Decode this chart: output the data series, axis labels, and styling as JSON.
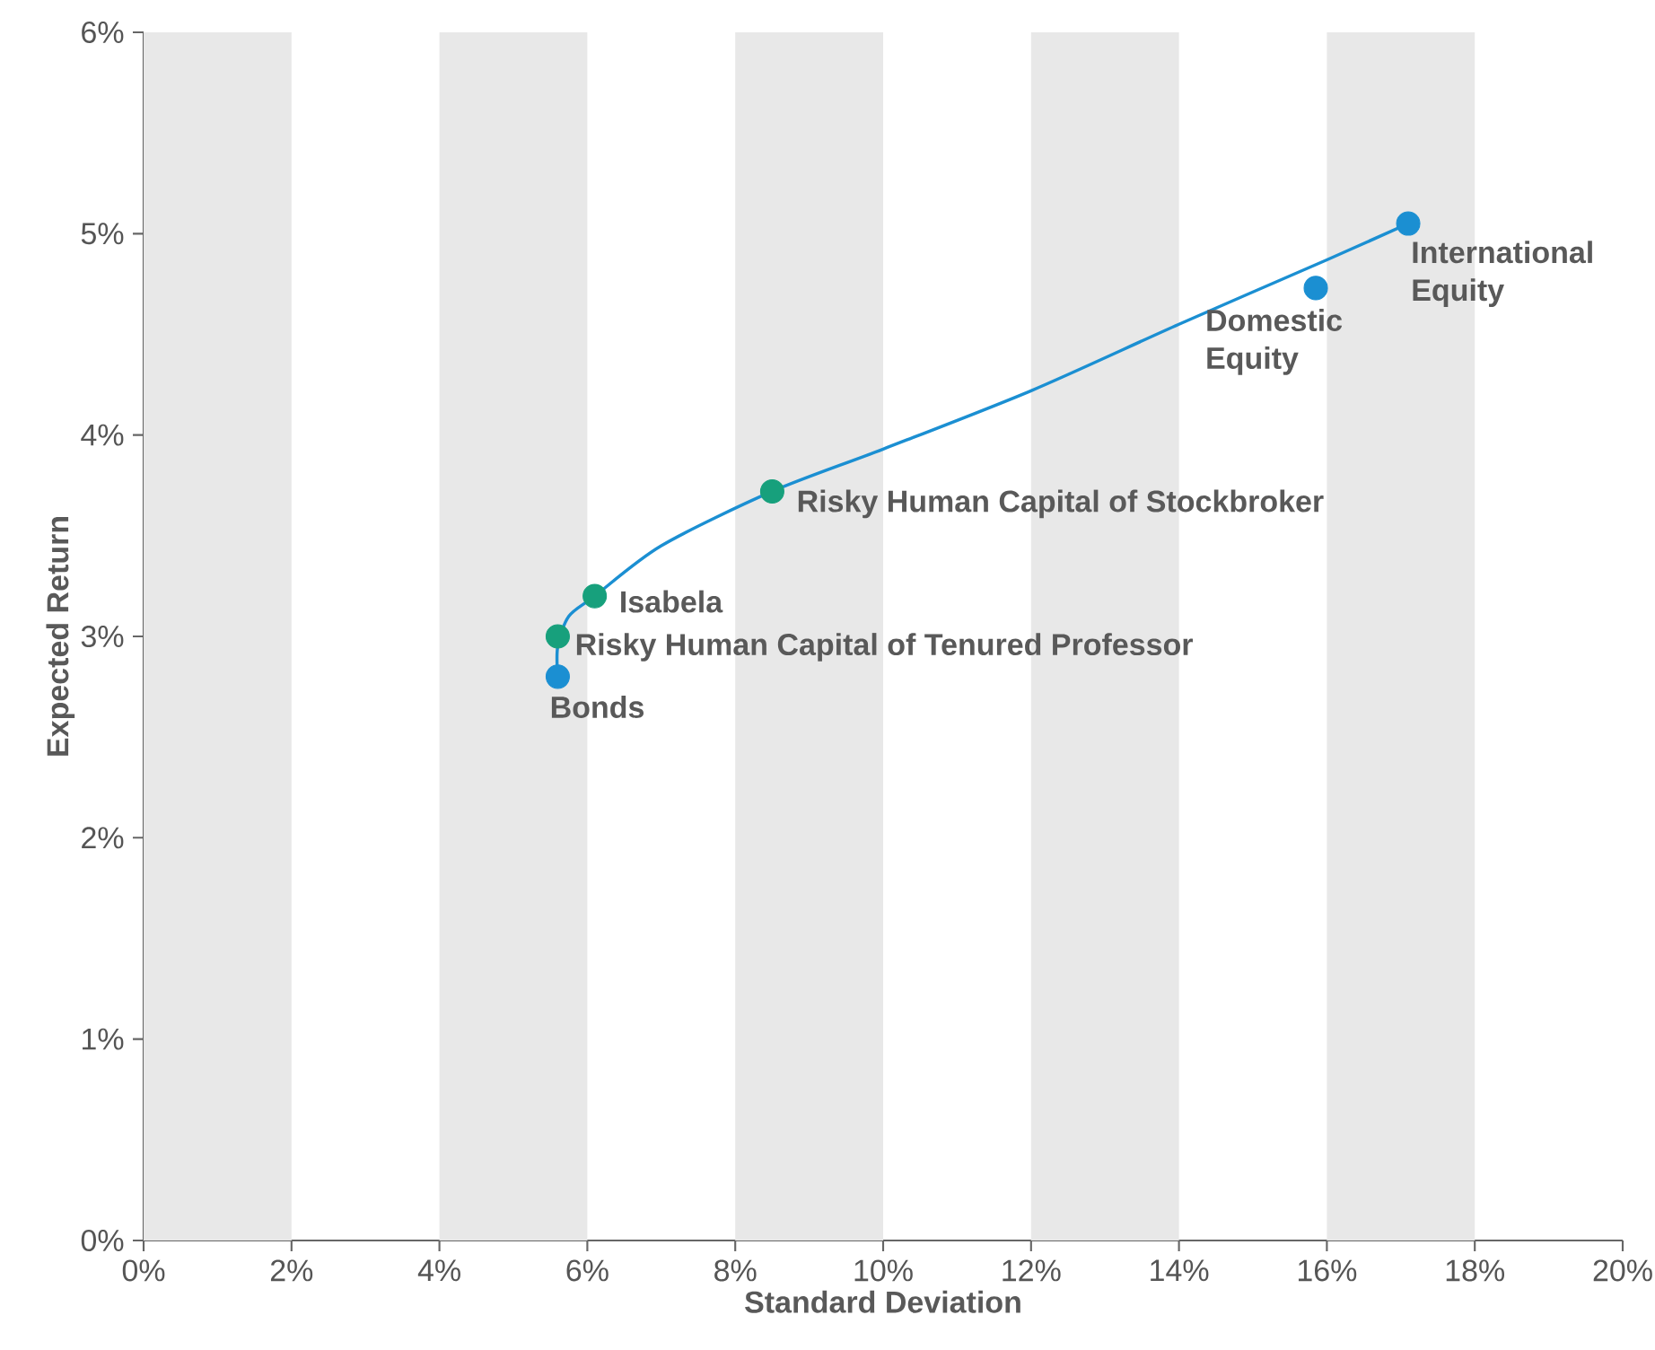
{
  "chart_data": {
    "type": "scatter",
    "xlabel": "Standard Deviation",
    "ylabel": "Expected Return",
    "xlim": [
      0,
      20
    ],
    "ylim": [
      0,
      6
    ],
    "xticks": [
      {
        "value": 0,
        "label": "0%"
      },
      {
        "value": 2,
        "label": "2%"
      },
      {
        "value": 4,
        "label": "4%"
      },
      {
        "value": 6,
        "label": "6%"
      },
      {
        "value": 8,
        "label": "8%"
      },
      {
        "value": 10,
        "label": "10%"
      },
      {
        "value": 12,
        "label": "12%"
      },
      {
        "value": 14,
        "label": "14%"
      },
      {
        "value": 16,
        "label": "16%"
      },
      {
        "value": 18,
        "label": "18%"
      },
      {
        "value": 20,
        "label": "20%"
      }
    ],
    "yticks": [
      {
        "value": 0,
        "label": "0%"
      },
      {
        "value": 1,
        "label": "1%"
      },
      {
        "value": 2,
        "label": "2%"
      },
      {
        "value": 3,
        "label": "3%"
      },
      {
        "value": 4,
        "label": "4%"
      },
      {
        "value": 5,
        "label": "5%"
      },
      {
        "value": 6,
        "label": "6%"
      }
    ],
    "bands": [
      {
        "axis": "x",
        "from": 0,
        "to": 2,
        "color": "#e8e8e8"
      },
      {
        "axis": "x",
        "from": 4,
        "to": 6,
        "color": "#e8e8e8"
      },
      {
        "axis": "x",
        "from": 8,
        "to": 10,
        "color": "#e8e8e8"
      },
      {
        "axis": "x",
        "from": 12,
        "to": 14,
        "color": "#e8e8e8"
      },
      {
        "axis": "x",
        "from": 16,
        "to": 18,
        "color": "#e8e8e8"
      }
    ],
    "series": [
      {
        "type": "line",
        "color": "#1b8fd2",
        "marker": "none",
        "x": [
          5.6,
          5.6,
          5.75,
          6.1,
          7.0,
          8.5,
          10.0,
          12.0,
          14.0,
          16.0,
          17.1
        ],
        "values": [
          2.8,
          2.95,
          3.1,
          3.2,
          3.45,
          3.72,
          3.93,
          4.22,
          4.55,
          4.87,
          5.05
        ]
      },
      {
        "color": "#1b8fd2",
        "marker": "circle",
        "x": [
          5.6,
          15.85,
          17.1
        ],
        "values": [
          2.8,
          4.73,
          5.05
        ]
      },
      {
        "color": "#17a07c",
        "marker": "circle",
        "x": [
          5.6,
          6.1,
          8.5
        ],
        "values": [
          3.0,
          3.2,
          3.72
        ]
      }
    ],
    "annotations": [
      {
        "text": "International Equity",
        "x": 17.1,
        "y": 5.05
      },
      {
        "text": "Domestic Equity",
        "x": 15.85,
        "y": 4.73
      },
      {
        "text": "Risky Human Capital of Stockbroker",
        "x": 8.5,
        "y": 3.72
      },
      {
        "text": "Isabela",
        "x": 6.1,
        "y": 3.2
      },
      {
        "text": "Risky Human Capital of Tenured Professor",
        "x": 5.6,
        "y": 3.0
      },
      {
        "text": "Bonds",
        "x": 5.6,
        "y": 2.8
      }
    ]
  }
}
